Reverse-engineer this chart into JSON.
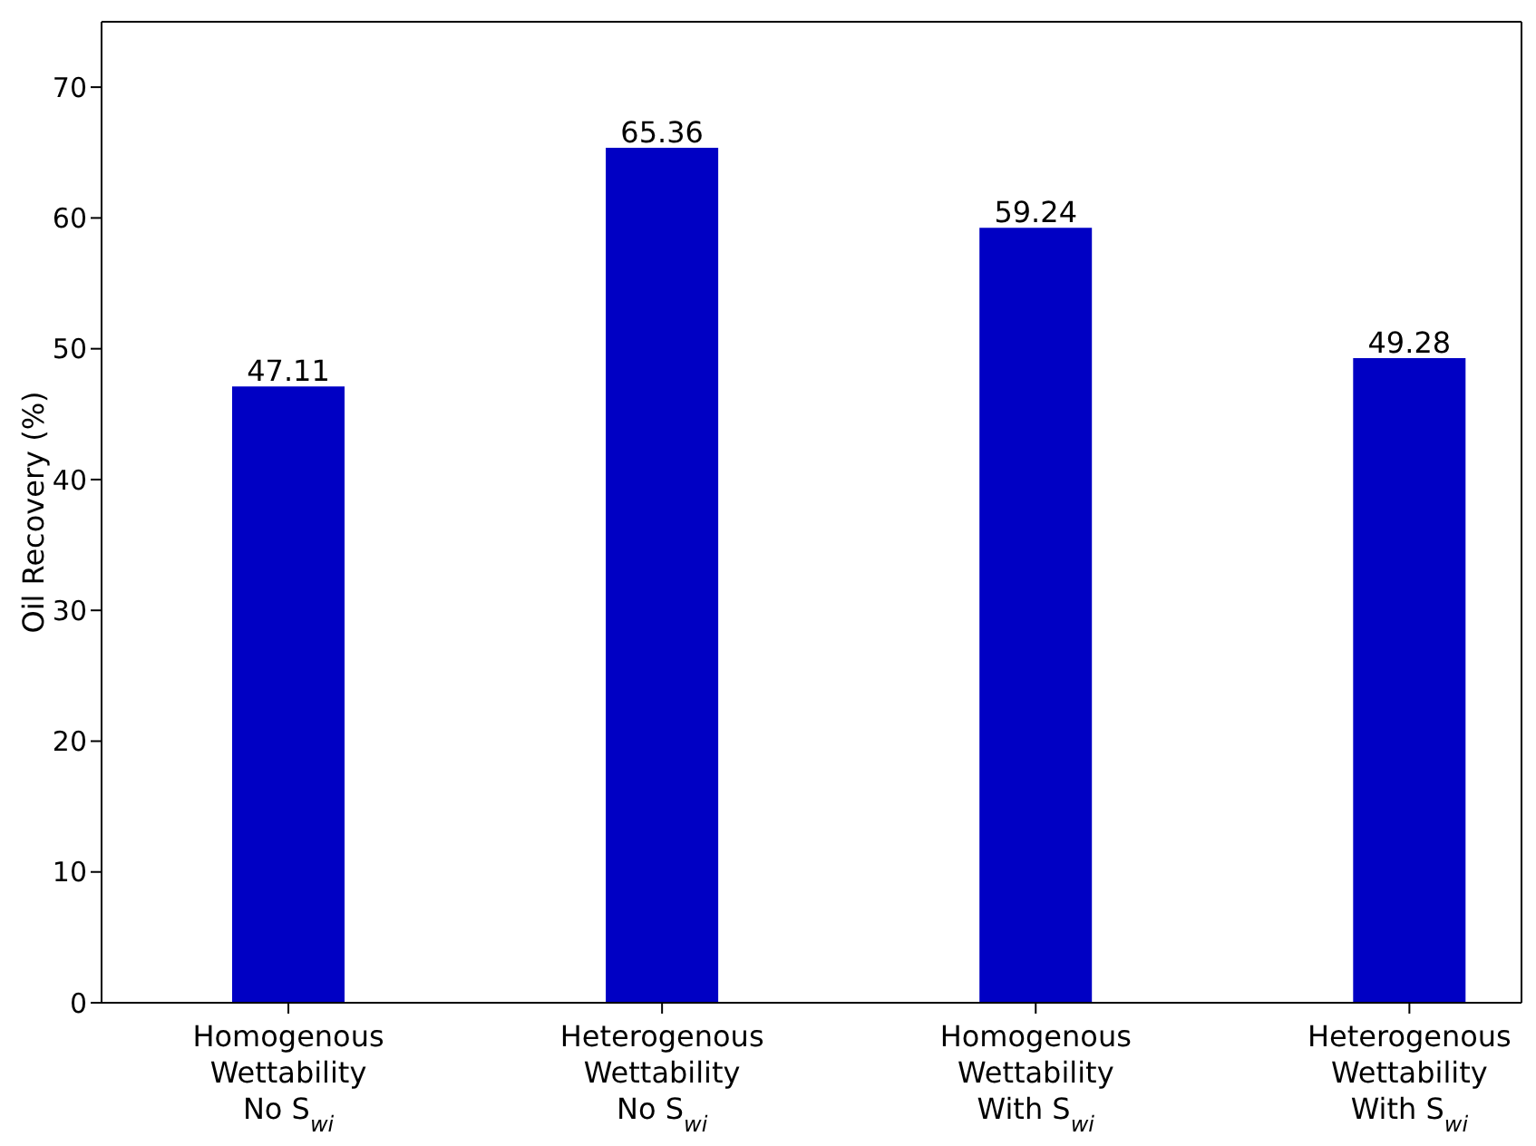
{
  "chart_data": {
    "type": "bar",
    "ylabel": "Oil Recovery (%)",
    "categories": [
      "Homogenous\nWettability\nNo S$_{wi}$",
      "Heterogenous\nWettability\nNo S$_{wi}$",
      "Homogenous\nWettability\nWith S$_{wi}$",
      "Heterogenous\nWettability\nWith S$_{wi}$"
    ],
    "values": [
      47.11,
      65.36,
      59.24,
      49.28
    ],
    "color": "#0000c4",
    "ylim": [
      0,
      75
    ],
    "yticks": [
      0,
      10,
      20,
      30,
      40,
      50,
      60,
      70
    ],
    "grid": false,
    "data_labels": true
  }
}
